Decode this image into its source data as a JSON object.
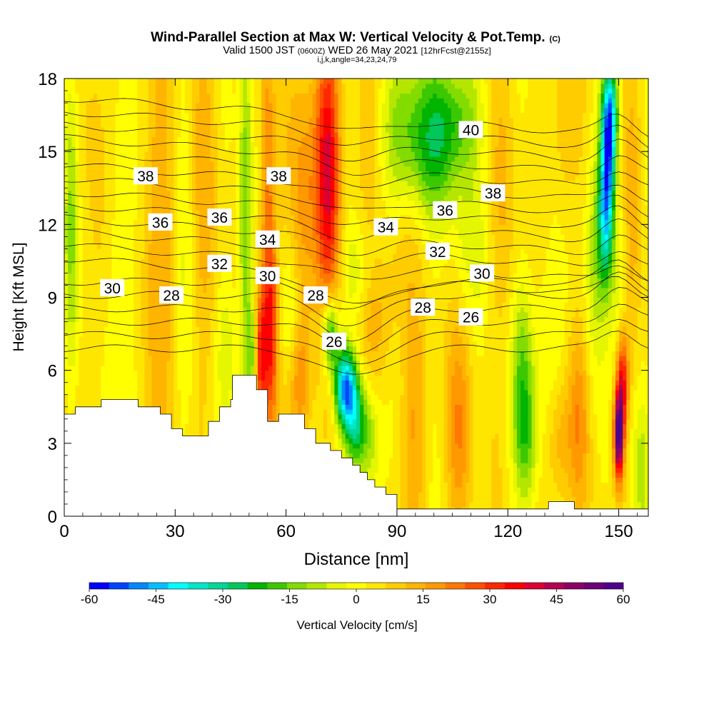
{
  "header": {
    "title_main": "Wind-Parallel Section at Max W: Vertical Velocity & Pot.Temp.",
    "title_mark": "(C)",
    "valid_prefix": "Valid 1500 JST",
    "valid_z": "(0600Z)",
    "valid_date": "WED 26 May 2021",
    "valid_fcst": "[12hrFcst@2155z]",
    "indices": "i,j,k,angle=34,23,24,79"
  },
  "chart_data": {
    "type": "heatmap",
    "xlabel": "Distance [nm]",
    "ylabel": "Height [Kft MSL]",
    "xlim": [
      0,
      158
    ],
    "ylim": [
      0,
      18
    ],
    "x_ticks": [
      0,
      30,
      60,
      90,
      120,
      150
    ],
    "y_ticks": [
      0,
      3,
      6,
      9,
      12,
      15,
      18
    ],
    "colorbar": {
      "label": "Vertical Velocity [cm/s]",
      "range": [
        -60,
        60
      ],
      "tick_labels": [
        "-60",
        "-45",
        "-30",
        "-15",
        "0",
        "15",
        "30",
        "45",
        "60"
      ],
      "colors": [
        "#0000ff",
        "#0044ff",
        "#0088ff",
        "#00c0ff",
        "#00ffff",
        "#00e6c8",
        "#00d696",
        "#00c85a",
        "#00b400",
        "#3cc800",
        "#82dc00",
        "#b4e600",
        "#e6f500",
        "#ffff00",
        "#ffe600",
        "#ffcc00",
        "#ffb400",
        "#ff9900",
        "#ff7800",
        "#ff5000",
        "#ff2800",
        "#ff0000",
        "#dc0032",
        "#b40050",
        "#8c0064",
        "#6e0078",
        "#50008c"
      ]
    },
    "theta_contour_labels": [
      {
        "text": "40",
        "x": 110,
        "y": 15.9
      },
      {
        "text": "38",
        "x": 22,
        "y": 14.0
      },
      {
        "text": "38",
        "x": 58,
        "y": 14.0
      },
      {
        "text": "38",
        "x": 116,
        "y": 13.3
      },
      {
        "text": "36",
        "x": 26,
        "y": 12.1
      },
      {
        "text": "36",
        "x": 42,
        "y": 12.3
      },
      {
        "text": "36",
        "x": 103,
        "y": 12.6
      },
      {
        "text": "34",
        "x": 55,
        "y": 11.4
      },
      {
        "text": "34",
        "x": 87,
        "y": 11.9
      },
      {
        "text": "32",
        "x": 42,
        "y": 10.4
      },
      {
        "text": "32",
        "x": 101,
        "y": 10.9
      },
      {
        "text": "30",
        "x": 13,
        "y": 9.4
      },
      {
        "text": "30",
        "x": 55,
        "y": 9.9
      },
      {
        "text": "30",
        "x": 113,
        "y": 10.0
      },
      {
        "text": "28",
        "x": 29,
        "y": 9.1
      },
      {
        "text": "28",
        "x": 68,
        "y": 9.1
      },
      {
        "text": "28",
        "x": 97,
        "y": 8.6
      },
      {
        "text": "26",
        "x": 73,
        "y": 7.2
      },
      {
        "text": "26",
        "x": 110,
        "y": 8.2
      }
    ],
    "terrain_profile": [
      [
        0,
        4.2
      ],
      [
        3,
        4.2
      ],
      [
        3,
        4.5
      ],
      [
        10,
        4.5
      ],
      [
        10,
        4.8
      ],
      [
        20,
        4.8
      ],
      [
        20,
        4.5
      ],
      [
        26,
        4.5
      ],
      [
        26,
        4.2
      ],
      [
        29,
        4.2
      ],
      [
        29,
        3.6
      ],
      [
        32,
        3.6
      ],
      [
        32,
        3.3
      ],
      [
        39,
        3.3
      ],
      [
        39,
        3.9
      ],
      [
        42,
        3.9
      ],
      [
        42,
        4.5
      ],
      [
        45,
        4.5
      ],
      [
        45,
        4.8
      ],
      [
        45.5,
        4.8
      ],
      [
        45.5,
        5.8
      ],
      [
        52,
        5.8
      ],
      [
        52,
        5.2
      ],
      [
        55,
        5.2
      ],
      [
        55,
        3.9
      ],
      [
        58,
        3.9
      ],
      [
        58,
        4.2
      ],
      [
        65,
        4.2
      ],
      [
        65,
        3.6
      ],
      [
        68,
        3.6
      ],
      [
        68,
        3.0
      ],
      [
        72,
        3.0
      ],
      [
        72,
        2.7
      ],
      [
        75,
        2.7
      ],
      [
        75,
        2.4
      ],
      [
        78,
        2.4
      ],
      [
        78,
        2.1
      ],
      [
        80,
        2.1
      ],
      [
        80,
        1.8
      ],
      [
        82,
        1.8
      ],
      [
        82,
        1.5
      ],
      [
        84,
        1.5
      ],
      [
        84,
        1.2
      ],
      [
        87,
        1.2
      ],
      [
        87,
        0.9
      ],
      [
        90,
        0.9
      ],
      [
        90,
        0.3
      ],
      [
        131,
        0.3
      ],
      [
        131,
        0.6
      ],
      [
        138,
        0.6
      ],
      [
        138,
        0.3
      ],
      [
        158,
        0.3
      ]
    ],
    "w_features": [
      {
        "x": 2,
        "z": 12,
        "sx": 2,
        "sz": 7,
        "w": -18
      },
      {
        "x": 9,
        "z": 13,
        "sx": 3,
        "sz": 9,
        "w": 6
      },
      {
        "x": 15,
        "z": 10,
        "sx": 4,
        "sz": 8,
        "w": -8
      },
      {
        "x": 22,
        "z": 12,
        "sx": 4,
        "sz": 9,
        "w": 4
      },
      {
        "x": 27,
        "z": 11,
        "sx": 4,
        "sz": 8,
        "w": 9
      },
      {
        "x": 33,
        "z": 12,
        "sx": 3,
        "sz": 7,
        "w": -6
      },
      {
        "x": 38,
        "z": 14,
        "sx": 4,
        "sz": 8,
        "w": 8
      },
      {
        "x": 44,
        "z": 7,
        "sx": 3,
        "sz": 3,
        "w": -8
      },
      {
        "x": 49,
        "z": 12,
        "sx": 1.8,
        "sz": 9,
        "w": -20
      },
      {
        "x": 51,
        "z": 6.5,
        "sx": 1.5,
        "sz": 2.5,
        "w": -18
      },
      {
        "x": 53,
        "z": 6.5,
        "sx": 1.6,
        "sz": 3,
        "w": 28
      },
      {
        "x": 55,
        "z": 13,
        "sx": 2,
        "sz": 8,
        "w": 18
      },
      {
        "x": 56,
        "z": 7.5,
        "sx": 2,
        "sz": 4,
        "w": 24
      },
      {
        "x": 61,
        "z": 8.5,
        "sx": 2.5,
        "sz": 3,
        "w": -10
      },
      {
        "x": 64,
        "z": 5.5,
        "sx": 3,
        "sz": 2.5,
        "w": 16
      },
      {
        "x": 65,
        "z": 13,
        "sx": 4,
        "sz": 6,
        "w": 14
      },
      {
        "x": 71,
        "z": 15,
        "sx": 3.5,
        "sz": 5,
        "w": 24
      },
      {
        "x": 72,
        "z": 12,
        "sx": 3,
        "sz": 7,
        "w": 12
      },
      {
        "x": 76,
        "z": 5.3,
        "sx": 3,
        "sz": 1.6,
        "w": -52
      },
      {
        "x": 72,
        "z": 7.5,
        "sx": 2.2,
        "sz": 1.6,
        "w": -35
      },
      {
        "x": 79,
        "z": 3.8,
        "sx": 3,
        "sz": 1.8,
        "w": -28
      },
      {
        "x": 83,
        "z": 3,
        "sx": 3,
        "sz": 2.5,
        "w": -14
      },
      {
        "x": 79,
        "z": 10,
        "sx": 5,
        "sz": 2,
        "w": -8
      },
      {
        "x": 85,
        "z": 8,
        "sx": 5,
        "sz": 2.5,
        "w": 9
      },
      {
        "x": 82,
        "z": 15,
        "sx": 5,
        "sz": 4,
        "w": 6
      },
      {
        "x": 94,
        "z": 16,
        "sx": 9,
        "sz": 3,
        "w": -20
      },
      {
        "x": 106,
        "z": 16.5,
        "sx": 7,
        "sz": 2.5,
        "w": -18
      },
      {
        "x": 101,
        "z": 14,
        "sx": 8,
        "sz": 2.5,
        "w": -10
      },
      {
        "x": 95,
        "z": 4,
        "sx": 3.5,
        "sz": 5,
        "w": 11
      },
      {
        "x": 90,
        "z": 10.5,
        "sx": 4,
        "sz": 2.5,
        "w": 5
      },
      {
        "x": 107,
        "z": 3.5,
        "sx": 3.5,
        "sz": 4,
        "w": 14
      },
      {
        "x": 110,
        "z": 11,
        "sx": 6,
        "sz": 2.5,
        "w": -6
      },
      {
        "x": 124,
        "z": 5.8,
        "sx": 3,
        "sz": 3.5,
        "w": -17
      },
      {
        "x": 125,
        "z": 3,
        "sx": 3,
        "sz": 2.5,
        "w": -13
      },
      {
        "x": 130,
        "z": 7,
        "sx": 4,
        "sz": 4,
        "w": -8
      },
      {
        "x": 119,
        "z": 14,
        "sx": 4,
        "sz": 6,
        "w": 6
      },
      {
        "x": 135,
        "z": 16,
        "sx": 3,
        "sz": 4,
        "w": 8
      },
      {
        "x": 134,
        "z": 3,
        "sx": 3,
        "sz": 2.5,
        "w": 10
      },
      {
        "x": 139,
        "z": 4,
        "sx": 3,
        "sz": 3.5,
        "w": 13
      },
      {
        "x": 143,
        "z": 11,
        "sx": 2.5,
        "sz": 5,
        "w": -10
      },
      {
        "x": 147,
        "z": 14.5,
        "sx": 2,
        "sz": 3.5,
        "w": -45
      },
      {
        "x": 148,
        "z": 16.5,
        "sx": 2,
        "sz": 2,
        "w": -30
      },
      {
        "x": 146,
        "z": 12,
        "sx": 2,
        "sz": 3,
        "w": -22
      },
      {
        "x": 150,
        "z": 10,
        "sx": 2.5,
        "sz": 3.5,
        "w": -10
      },
      {
        "x": 150,
        "z": 3.3,
        "sx": 1.3,
        "sz": 1.8,
        "w": 55
      },
      {
        "x": 151,
        "z": 5.5,
        "sx": 1.6,
        "sz": 2,
        "w": 30
      },
      {
        "x": 154,
        "z": 14,
        "sx": 2.5,
        "sz": 6,
        "w": 10
      },
      {
        "x": 156,
        "z": 2,
        "sx": 2.5,
        "sz": 3,
        "w": -10
      }
    ]
  }
}
